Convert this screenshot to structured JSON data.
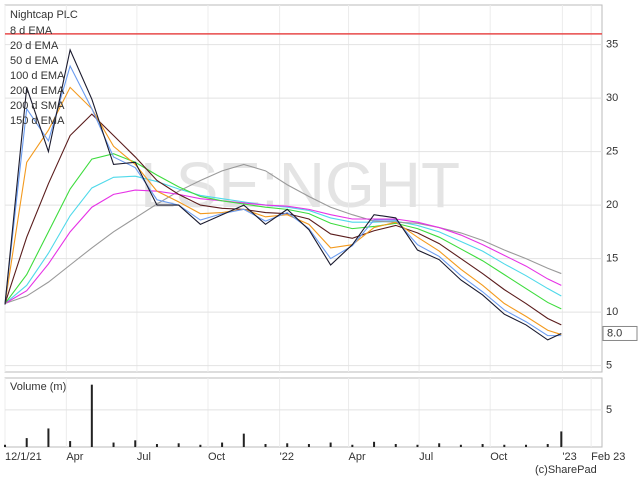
{
  "chart_data": [
    {
      "type": "line",
      "title": "Nightcap PLC",
      "watermark": "LSE:NGHT",
      "x": [
        0,
        4,
        8,
        12,
        16,
        20,
        24,
        28,
        32,
        36,
        40,
        44,
        48,
        52,
        56,
        60,
        64,
        68,
        72,
        76,
        80,
        84,
        88,
        92,
        96,
        100,
        102.5
      ],
      "xlim": [
        0,
        110
      ],
      "ylim": [
        4.4,
        38.7
      ],
      "yticks": [
        5,
        10,
        15,
        20,
        25,
        30,
        35
      ],
      "grid": true,
      "reference_line": {
        "value": 36,
        "color": "#e84a4a"
      },
      "series": [
        {
          "color": "#1a1a2e",
          "values": [
            10.7,
            31,
            25,
            34.5,
            29.9,
            23.8,
            24,
            20,
            20,
            18.2,
            19.1,
            20,
            18.2,
            19.6,
            17.7,
            14.4,
            16.3,
            19.1,
            18.8,
            15.8,
            14.9,
            13,
            11.6,
            9.8,
            8.8,
            7.4,
            8
          ],
          "value_labels": [
            null,
            null,
            null,
            null,
            null,
            null,
            null,
            null,
            null,
            null,
            null,
            null,
            null,
            null,
            null,
            null,
            null,
            null,
            null,
            null,
            null,
            null,
            null,
            null,
            null,
            null,
            "8.0"
          ]
        },
        {
          "name": "8 d EMA",
          "color": "#6b9cf0",
          "values": [
            10.8,
            29,
            26,
            33,
            29,
            24.5,
            23.5,
            20.5,
            20,
            18.6,
            19.2,
            19.6,
            18.5,
            19.3,
            17.8,
            15,
            16.2,
            18.6,
            18.6,
            16.3,
            15.2,
            13.4,
            11.9,
            10.2,
            9.1,
            7.8,
            7.8
          ]
        },
        {
          "name": "20 d EMA",
          "color": "#f39a1e",
          "values": [
            10.8,
            24,
            27,
            31,
            29,
            25.5,
            23.8,
            21.3,
            20.3,
            19.2,
            19.3,
            19.6,
            18.9,
            19.1,
            18.2,
            16,
            16.3,
            17.9,
            18.4,
            17,
            15.7,
            14,
            12.5,
            10.8,
            9.6,
            8.3,
            7.9
          ]
        },
        {
          "name": "50 d EMA",
          "color": "#5a1c1c",
          "values": [
            10.8,
            17,
            22,
            26.5,
            28.5,
            26.5,
            24.5,
            22.3,
            21,
            20,
            19.7,
            19.6,
            19.3,
            19.2,
            18.7,
            17.3,
            16.9,
            17.6,
            18.1,
            17.4,
            16.4,
            15,
            13.6,
            12.1,
            10.8,
            9.4,
            8.8
          ]
        },
        {
          "name": "100 d EMA",
          "color": "#3ddc3d",
          "values": [
            10.8,
            13.5,
            17.5,
            21.5,
            24.3,
            24.8,
            24,
            22.8,
            21.7,
            20.8,
            20.4,
            20.1,
            19.8,
            19.6,
            19.2,
            18.3,
            17.8,
            18,
            18.3,
            17.8,
            17,
            15.9,
            14.8,
            13.5,
            12.2,
            10.9,
            10.3
          ]
        },
        {
          "name": "200 d EMA",
          "color": "#e632e6",
          "values": [
            10.8,
            12,
            14.5,
            17.5,
            19.8,
            21,
            21.4,
            21.3,
            21,
            20.6,
            20.4,
            20.2,
            20,
            19.9,
            19.6,
            19.1,
            18.7,
            18.7,
            18.7,
            18.4,
            17.9,
            17.2,
            16.3,
            15.3,
            14.3,
            13.1,
            12.5
          ]
        },
        {
          "name": "200 d SMA",
          "color": "#9a9a9a",
          "values": [
            10.8,
            11.5,
            12.8,
            14.4,
            16,
            17.5,
            18.8,
            20.1,
            21.3,
            22.3,
            23.2,
            23.8,
            23.2,
            21.9,
            20.8,
            19.8,
            19.1,
            18.5,
            18.4,
            18.3,
            17.9,
            17.4,
            16.7,
            15.8,
            15,
            14.1,
            13.6
          ]
        },
        {
          "name": "150 d EMA",
          "color": "#4fd9ea",
          "values": [
            10.8,
            12.5,
            15.5,
            19,
            21.6,
            22.6,
            22.7,
            22.2,
            21.5,
            20.9,
            20.6,
            20.3,
            20,
            19.8,
            19.5,
            18.8,
            18.4,
            18.4,
            18.5,
            18.1,
            17.5,
            16.6,
            15.7,
            14.5,
            13.4,
            12.2,
            11.5
          ]
        }
      ]
    },
    {
      "type": "bar",
      "title": "Volume (m)",
      "credit": "(c)SharePad",
      "x": [
        0,
        4,
        8,
        12,
        16,
        20,
        24,
        28,
        32,
        36,
        40,
        44,
        48,
        52,
        56,
        60,
        64,
        68,
        72,
        76,
        80,
        84,
        88,
        92,
        96,
        100,
        102.5
      ],
      "xlim": [
        0,
        110
      ],
      "values": [
        0.3,
        1.2,
        2.5,
        0.8,
        8.4,
        0.6,
        0.9,
        0.4,
        0.5,
        0.3,
        0.6,
        1.8,
        0.4,
        0.5,
        0.4,
        0.6,
        0.3,
        0.7,
        0.4,
        0.3,
        0.5,
        0.3,
        0.4,
        0.3,
        0.3,
        0.4,
        2.1
      ],
      "color": "#222222",
      "ylim": [
        0,
        9.3
      ],
      "yticks": [
        5
      ],
      "xticks": [
        {
          "value": 0,
          "label": "12/1/21"
        },
        {
          "value": 11.3,
          "label": "Apr"
        },
        {
          "value": 24.3,
          "label": "Jul"
        },
        {
          "value": 37.4,
          "label": "Oct"
        },
        {
          "value": 50.6,
          "label": "'22"
        },
        {
          "value": 63.3,
          "label": "Apr"
        },
        {
          "value": 76.3,
          "label": "Jul"
        },
        {
          "value": 89.4,
          "label": "Oct"
        },
        {
          "value": 102.7,
          "label": "'23"
        },
        {
          "value": 108,
          "label": "Feb 23"
        }
      ]
    }
  ]
}
